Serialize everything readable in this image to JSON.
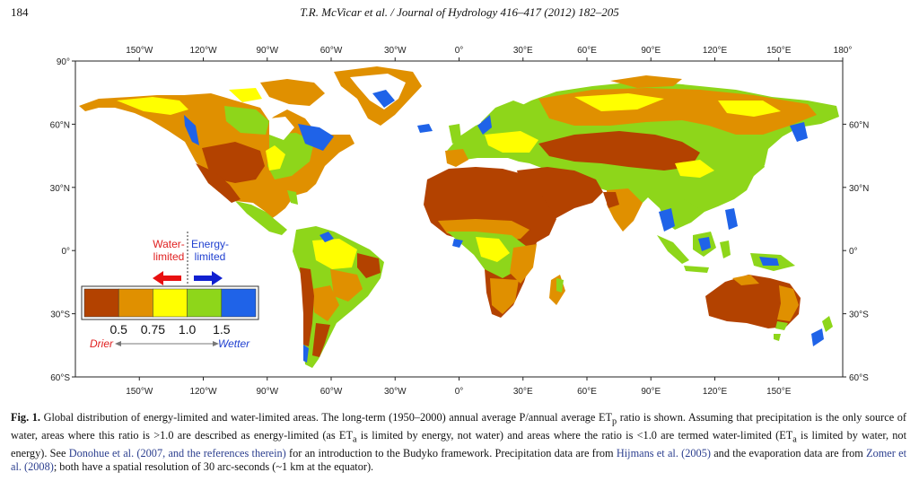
{
  "header": {
    "page_number": "184",
    "running_title": "T.R. McVicar et al. / Journal of Hydrology 416–417 (2012) 182–205"
  },
  "map": {
    "top_lon_labels": [
      "150°W",
      "120°W",
      "90°W",
      "60°W",
      "30°W",
      "0°",
      "30°E",
      "60°E",
      "90°E",
      "120°E",
      "150°E",
      "180°"
    ],
    "bottom_lon_labels": [
      "150°W",
      "120°W",
      "90°W",
      "60°W",
      "30°W",
      "0°",
      "30°E",
      "60°E",
      "90°E",
      "120°E",
      "150°E"
    ],
    "left_lat_labels": [
      "90°",
      "60°N",
      "30°N",
      "0°",
      "30°S",
      "60°S"
    ],
    "right_lat_labels": [
      "60°N",
      "30°N",
      "0°",
      "30°S",
      "60°S"
    ],
    "colors": {
      "very_dry": "#b34200",
      "dry": "#e09000",
      "transition": "#ffff00",
      "wet": "#8ed61a",
      "very_wet": "#1f63e8",
      "ice": "#ffffff"
    }
  },
  "legend": {
    "water_label": "Water-\nlimited",
    "energy_label": "Energy-\nlimited",
    "ticks": [
      "0.5",
      "0.75",
      "1.0",
      "1.5"
    ],
    "drier": "Drier",
    "wetter": "Wetter",
    "swatch_colors": [
      "#b34200",
      "#e09000",
      "#ffff00",
      "#8ed61a",
      "#1f63e8"
    ]
  },
  "caption": {
    "label": "Fig. 1.",
    "part1": " Global distribution of energy-limited and water-limited areas. The long-term (1950–2000) annual average P/annual average ET",
    "sub1": "p",
    "part2": " ratio is shown. Assuming that precipitation is the only source of water, areas where this ratio is >1.0 are described as energy-limited (as ET",
    "sub2": "a",
    "part3": " is limited by energy, not water) and areas where the ratio is <1.0 are termed water-limited (ET",
    "sub3": "a",
    "part4": " is limited by water, not energy). See ",
    "ref1": "Donohue et al. (2007, and the references therein)",
    "part5": " for an introduction to the Budyko framework. Precipitation data are from ",
    "ref2": "Hijmans et al. (2005)",
    "part6": " and the evaporation data are from ",
    "ref3": "Zomer et al. (2008)",
    "part7": "; both have a spatial resolution of 30 arc-seconds (~1 km at the equator)."
  }
}
